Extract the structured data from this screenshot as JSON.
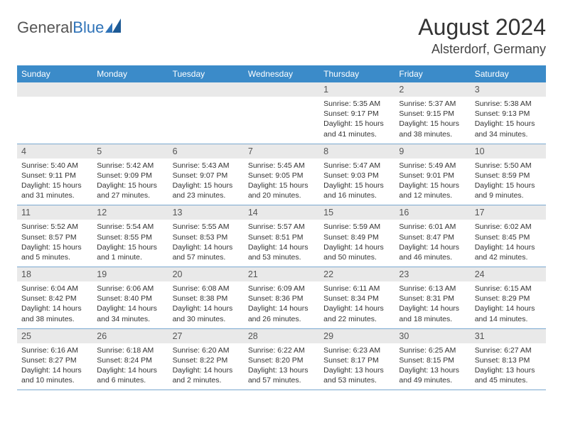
{
  "brand": {
    "part1": "General",
    "part2": "Blue"
  },
  "title": "August 2024",
  "location": "Alsterdorf, Germany",
  "colors": {
    "header_bg": "#3b8bc9",
    "band_bg": "#e9e9e9",
    "row_border": "#7aa8d0",
    "text": "#333333",
    "muted": "#555555"
  },
  "weekdays": [
    "Sunday",
    "Monday",
    "Tuesday",
    "Wednesday",
    "Thursday",
    "Friday",
    "Saturday"
  ],
  "weeks": [
    [
      {
        "n": "",
        "sunrise": "",
        "sunset": "",
        "daylight": ""
      },
      {
        "n": "",
        "sunrise": "",
        "sunset": "",
        "daylight": ""
      },
      {
        "n": "",
        "sunrise": "",
        "sunset": "",
        "daylight": ""
      },
      {
        "n": "",
        "sunrise": "",
        "sunset": "",
        "daylight": ""
      },
      {
        "n": "1",
        "sunrise": "Sunrise: 5:35 AM",
        "sunset": "Sunset: 9:17 PM",
        "daylight": "Daylight: 15 hours and 41 minutes."
      },
      {
        "n": "2",
        "sunrise": "Sunrise: 5:37 AM",
        "sunset": "Sunset: 9:15 PM",
        "daylight": "Daylight: 15 hours and 38 minutes."
      },
      {
        "n": "3",
        "sunrise": "Sunrise: 5:38 AM",
        "sunset": "Sunset: 9:13 PM",
        "daylight": "Daylight: 15 hours and 34 minutes."
      }
    ],
    [
      {
        "n": "4",
        "sunrise": "Sunrise: 5:40 AM",
        "sunset": "Sunset: 9:11 PM",
        "daylight": "Daylight: 15 hours and 31 minutes."
      },
      {
        "n": "5",
        "sunrise": "Sunrise: 5:42 AM",
        "sunset": "Sunset: 9:09 PM",
        "daylight": "Daylight: 15 hours and 27 minutes."
      },
      {
        "n": "6",
        "sunrise": "Sunrise: 5:43 AM",
        "sunset": "Sunset: 9:07 PM",
        "daylight": "Daylight: 15 hours and 23 minutes."
      },
      {
        "n": "7",
        "sunrise": "Sunrise: 5:45 AM",
        "sunset": "Sunset: 9:05 PM",
        "daylight": "Daylight: 15 hours and 20 minutes."
      },
      {
        "n": "8",
        "sunrise": "Sunrise: 5:47 AM",
        "sunset": "Sunset: 9:03 PM",
        "daylight": "Daylight: 15 hours and 16 minutes."
      },
      {
        "n": "9",
        "sunrise": "Sunrise: 5:49 AM",
        "sunset": "Sunset: 9:01 PM",
        "daylight": "Daylight: 15 hours and 12 minutes."
      },
      {
        "n": "10",
        "sunrise": "Sunrise: 5:50 AM",
        "sunset": "Sunset: 8:59 PM",
        "daylight": "Daylight: 15 hours and 9 minutes."
      }
    ],
    [
      {
        "n": "11",
        "sunrise": "Sunrise: 5:52 AM",
        "sunset": "Sunset: 8:57 PM",
        "daylight": "Daylight: 15 hours and 5 minutes."
      },
      {
        "n": "12",
        "sunrise": "Sunrise: 5:54 AM",
        "sunset": "Sunset: 8:55 PM",
        "daylight": "Daylight: 15 hours and 1 minute."
      },
      {
        "n": "13",
        "sunrise": "Sunrise: 5:55 AM",
        "sunset": "Sunset: 8:53 PM",
        "daylight": "Daylight: 14 hours and 57 minutes."
      },
      {
        "n": "14",
        "sunrise": "Sunrise: 5:57 AM",
        "sunset": "Sunset: 8:51 PM",
        "daylight": "Daylight: 14 hours and 53 minutes."
      },
      {
        "n": "15",
        "sunrise": "Sunrise: 5:59 AM",
        "sunset": "Sunset: 8:49 PM",
        "daylight": "Daylight: 14 hours and 50 minutes."
      },
      {
        "n": "16",
        "sunrise": "Sunrise: 6:01 AM",
        "sunset": "Sunset: 8:47 PM",
        "daylight": "Daylight: 14 hours and 46 minutes."
      },
      {
        "n": "17",
        "sunrise": "Sunrise: 6:02 AM",
        "sunset": "Sunset: 8:45 PM",
        "daylight": "Daylight: 14 hours and 42 minutes."
      }
    ],
    [
      {
        "n": "18",
        "sunrise": "Sunrise: 6:04 AM",
        "sunset": "Sunset: 8:42 PM",
        "daylight": "Daylight: 14 hours and 38 minutes."
      },
      {
        "n": "19",
        "sunrise": "Sunrise: 6:06 AM",
        "sunset": "Sunset: 8:40 PM",
        "daylight": "Daylight: 14 hours and 34 minutes."
      },
      {
        "n": "20",
        "sunrise": "Sunrise: 6:08 AM",
        "sunset": "Sunset: 8:38 PM",
        "daylight": "Daylight: 14 hours and 30 minutes."
      },
      {
        "n": "21",
        "sunrise": "Sunrise: 6:09 AM",
        "sunset": "Sunset: 8:36 PM",
        "daylight": "Daylight: 14 hours and 26 minutes."
      },
      {
        "n": "22",
        "sunrise": "Sunrise: 6:11 AM",
        "sunset": "Sunset: 8:34 PM",
        "daylight": "Daylight: 14 hours and 22 minutes."
      },
      {
        "n": "23",
        "sunrise": "Sunrise: 6:13 AM",
        "sunset": "Sunset: 8:31 PM",
        "daylight": "Daylight: 14 hours and 18 minutes."
      },
      {
        "n": "24",
        "sunrise": "Sunrise: 6:15 AM",
        "sunset": "Sunset: 8:29 PM",
        "daylight": "Daylight: 14 hours and 14 minutes."
      }
    ],
    [
      {
        "n": "25",
        "sunrise": "Sunrise: 6:16 AM",
        "sunset": "Sunset: 8:27 PM",
        "daylight": "Daylight: 14 hours and 10 minutes."
      },
      {
        "n": "26",
        "sunrise": "Sunrise: 6:18 AM",
        "sunset": "Sunset: 8:24 PM",
        "daylight": "Daylight: 14 hours and 6 minutes."
      },
      {
        "n": "27",
        "sunrise": "Sunrise: 6:20 AM",
        "sunset": "Sunset: 8:22 PM",
        "daylight": "Daylight: 14 hours and 2 minutes."
      },
      {
        "n": "28",
        "sunrise": "Sunrise: 6:22 AM",
        "sunset": "Sunset: 8:20 PM",
        "daylight": "Daylight: 13 hours and 57 minutes."
      },
      {
        "n": "29",
        "sunrise": "Sunrise: 6:23 AM",
        "sunset": "Sunset: 8:17 PM",
        "daylight": "Daylight: 13 hours and 53 minutes."
      },
      {
        "n": "30",
        "sunrise": "Sunrise: 6:25 AM",
        "sunset": "Sunset: 8:15 PM",
        "daylight": "Daylight: 13 hours and 49 minutes."
      },
      {
        "n": "31",
        "sunrise": "Sunrise: 6:27 AM",
        "sunset": "Sunset: 8:13 PM",
        "daylight": "Daylight: 13 hours and 45 minutes."
      }
    ]
  ]
}
